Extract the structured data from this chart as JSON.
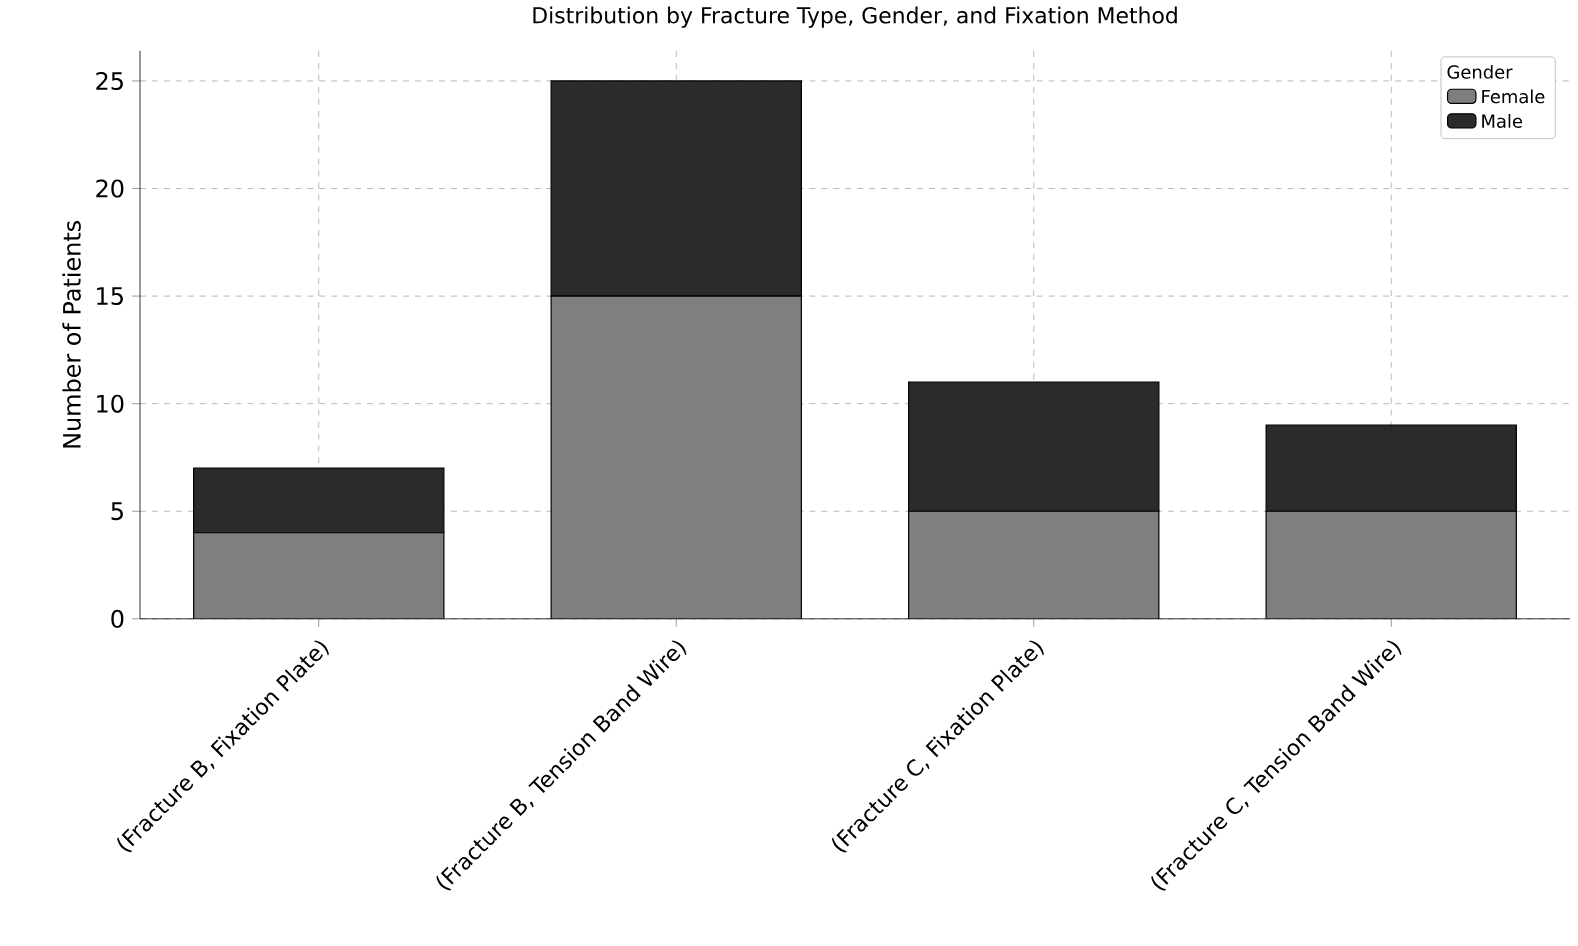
{
  "chart_data": {
    "type": "bar",
    "title": "Distribution by Fracture Type, Gender, and Fixation Method",
    "ylabel": "Number of Patients",
    "categories": [
      "(Fracture B, Fixation Plate)",
      "(Fracture B, Tension Band Wire)",
      "(Fracture C, Fixation Plate)",
      "(Fracture C, Tension Band Wire)"
    ],
    "series": [
      {
        "name": "Female",
        "color": "#7f7f7f",
        "values": [
          4,
          15,
          5,
          5
        ]
      },
      {
        "name": "Male",
        "color": "#2b2b2b",
        "values": [
          3,
          10,
          6,
          4
        ]
      }
    ],
    "stacked": true,
    "ylim": [
      0,
      26.4
    ],
    "yticks": [
      0,
      5,
      10,
      15,
      20,
      25
    ],
    "grid": true,
    "legend": "top right",
    "legend_title": "Gender"
  }
}
